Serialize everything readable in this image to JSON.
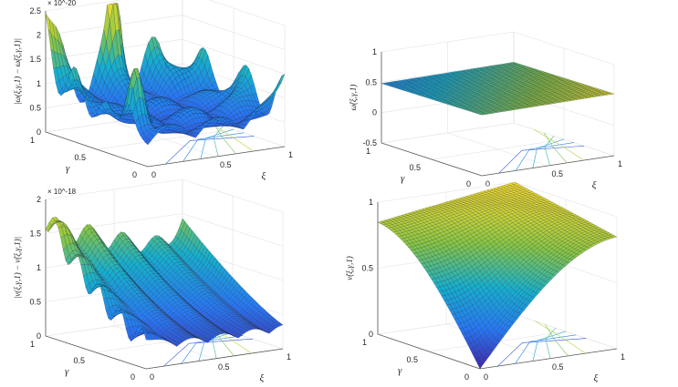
{
  "chart_data": [
    {
      "type": "surface",
      "panel": "top-left",
      "zlabel": "|ω(ξ,γ,1) − ω̃(ξ,γ,1)|",
      "xlabel": "ξ",
      "ylabel": "γ",
      "xlim": [
        0,
        1
      ],
      "ylim": [
        0,
        1
      ],
      "zlim": [
        0,
        2.5
      ],
      "z_exponent": "× 10^-20",
      "xticks": [
        "0",
        "0.5",
        "1"
      ],
      "yticks": [
        "0",
        "0.5",
        "1"
      ],
      "zticks": [
        "0",
        "0.5",
        "1",
        "1.5",
        "2",
        "2.5"
      ],
      "surface": "oscillatory error surface, peaks near edges up to ~2.4, spike of ~2.1 at (0.5, 1)",
      "grid": true
    },
    {
      "type": "surface",
      "panel": "top-right",
      "zlabel": "ω̃(ξ,γ,1)",
      "xlabel": "ξ",
      "ylabel": "γ",
      "xlim": [
        0,
        1
      ],
      "ylim": [
        0,
        1
      ],
      "zlim": [
        -0.5,
        1
      ],
      "xticks": [
        "0",
        "0.5",
        "1"
      ],
      "yticks": [
        "0",
        "0.5",
        "1"
      ],
      "zticks": [
        "-0.5",
        "0",
        "0.5",
        "1"
      ],
      "surface": "nearly flat surface at ~0.5",
      "grid": true
    },
    {
      "type": "surface",
      "panel": "bottom-left",
      "zlabel": "|ν(ξ,γ,1) − ν̃(ξ,γ,1)|",
      "xlabel": "ξ",
      "ylabel": "γ",
      "xlim": [
        0,
        1
      ],
      "ylim": [
        0,
        1
      ],
      "zlim": [
        0,
        2
      ],
      "z_exponent": "× 10^-18",
      "xticks": [
        "0",
        "0.5",
        "1"
      ],
      "yticks": [
        "0",
        "0.5",
        "1"
      ],
      "zticks": [
        "0",
        "0.5",
        "1",
        "1.5",
        "2"
      ],
      "surface": "error ridge high along γ=1 edge (~1.7) decaying toward ξ=0, low along ξ edge",
      "grid": true
    },
    {
      "type": "surface",
      "panel": "bottom-right",
      "zlabel": "ν̃(ξ,γ,1)",
      "xlabel": "ξ",
      "ylabel": "γ",
      "xlim": [
        0,
        1
      ],
      "ylim": [
        0,
        1
      ],
      "zlim": [
        0,
        1
      ],
      "xticks": [
        "0",
        "0.5",
        "1"
      ],
      "yticks": [
        "0",
        "0.5",
        "1"
      ],
      "zticks": [
        "0",
        "0.5",
        "1"
      ],
      "surface": "dome rising from 0 at (0,0) to ~1 near (1,1)",
      "grid": true
    }
  ]
}
